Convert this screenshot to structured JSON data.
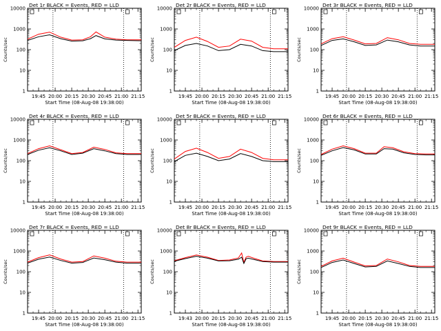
{
  "chart_data": [
    {
      "type": "line",
      "title": "Det 1r BLACK = Events, RED = LLD",
      "xlabel": "Start Time (08-Aug-08 19:38:00)",
      "ylabel": "Counts/sec",
      "y_scale": "log",
      "ylim": [
        1,
        10000
      ],
      "xlim": [
        "19:35",
        "21:18"
      ],
      "x_tick_labels": [
        "19:45",
        "20:00",
        "20:15",
        "20:30",
        "20:45",
        "21:00",
        "21:15"
      ],
      "y_tick_labels": [
        "1",
        "10",
        "100",
        "1000",
        "10000"
      ],
      "vlines": [
        "19:58",
        "21:02"
      ],
      "marker_label": "E",
      "x": [
        "19:35",
        "19:45",
        "19:55",
        "20:05",
        "20:15",
        "20:25",
        "20:32",
        "20:37",
        "20:45",
        "20:55",
        "21:05",
        "21:18"
      ],
      "series": [
        {
          "name": "BLACK = Events",
          "color": "#000000",
          "values": [
            280,
            420,
            520,
            340,
            260,
            270,
            340,
            480,
            330,
            290,
            280,
            270
          ]
        },
        {
          "name": "RED = LLD",
          "color": "#ff0000",
          "values": [
            320,
            560,
            700,
            400,
            290,
            300,
            420,
            720,
            400,
            320,
            300,
            300
          ]
        }
      ]
    },
    {
      "type": "line",
      "title": "Det 2r BLACK = Events, RED = LLD",
      "xlabel": "Start Time (08-Aug-08 19:38:00)",
      "ylabel": "Counts/sec",
      "y_scale": "log",
      "ylim": [
        1,
        10000
      ],
      "xlim": [
        "19:35",
        "21:18"
      ],
      "x_tick_labels": [
        "19:45",
        "20:00",
        "20:15",
        "20:30",
        "20:45",
        "21:00",
        "21:15"
      ],
      "y_tick_labels": [
        "1",
        "10",
        "100",
        "1000",
        "10000"
      ],
      "vlines": [
        "19:58",
        "21:02"
      ],
      "marker_label": "E",
      "x": [
        "19:35",
        "19:45",
        "19:55",
        "20:05",
        "20:15",
        "20:25",
        "20:35",
        "20:45",
        "20:55",
        "21:05",
        "21:18"
      ],
      "series": [
        {
          "name": "BLACK = Events",
          "color": "#000000",
          "values": [
            90,
            160,
            200,
            150,
            90,
            100,
            180,
            150,
            90,
            80,
            80
          ]
        },
        {
          "name": "RED = LLD",
          "color": "#ff0000",
          "values": [
            130,
            280,
            400,
            250,
            130,
            150,
            320,
            260,
            130,
            110,
            110
          ]
        }
      ]
    },
    {
      "type": "line",
      "title": "Det 3r BLACK = Events, RED = LLD",
      "xlabel": "Start Time (08-Aug-08 19:38:00)",
      "ylabel": "Counts/sec",
      "y_scale": "log",
      "ylim": [
        1,
        10000
      ],
      "xlim": [
        "19:35",
        "21:18"
      ],
      "x_tick_labels": [
        "19:45",
        "20:00",
        "20:15",
        "20:30",
        "20:45",
        "21:00",
        "21:15"
      ],
      "y_tick_labels": [
        "1",
        "10",
        "100",
        "1000",
        "10000"
      ],
      "vlines": [
        "19:58",
        "21:02"
      ],
      "marker_label": "E",
      "x": [
        "19:35",
        "19:45",
        "19:55",
        "20:05",
        "20:15",
        "20:25",
        "20:35",
        "20:45",
        "20:55",
        "21:05",
        "21:18"
      ],
      "series": [
        {
          "name": "BLACK = Events",
          "color": "#000000",
          "values": [
            160,
            280,
            330,
            240,
            160,
            170,
            290,
            240,
            170,
            150,
            150
          ]
        },
        {
          "name": "RED = LLD",
          "color": "#ff0000",
          "values": [
            190,
            340,
            420,
            290,
            190,
            200,
            380,
            300,
            200,
            180,
            180
          ]
        }
      ]
    },
    {
      "type": "line",
      "title": "Det 4r BLACK = Events, RED = LLD",
      "xlabel": "Start Time (08-Aug-08 19:38:00)",
      "ylabel": "Counts/sec",
      "y_scale": "log",
      "ylim": [
        1,
        10000
      ],
      "xlim": [
        "19:35",
        "21:18"
      ],
      "x_tick_labels": [
        "19:45",
        "20:00",
        "20:15",
        "20:30",
        "20:45",
        "21:00",
        "21:15"
      ],
      "y_tick_labels": [
        "1",
        "10",
        "100",
        "1000",
        "10000"
      ],
      "vlines": [
        "19:58",
        "21:02"
      ],
      "marker_label": "E",
      "x": [
        "19:35",
        "19:45",
        "19:55",
        "20:05",
        "20:15",
        "20:25",
        "20:35",
        "20:45",
        "20:55",
        "21:05",
        "21:18"
      ],
      "series": [
        {
          "name": "BLACK = Events",
          "color": "#000000",
          "values": [
            200,
            320,
            420,
            300,
            200,
            230,
            380,
            300,
            220,
            200,
            200
          ]
        },
        {
          "name": "RED = LLD",
          "color": "#ff0000",
          "values": [
            220,
            380,
            520,
            340,
            220,
            250,
            450,
            350,
            240,
            220,
            220
          ]
        }
      ]
    },
    {
      "type": "line",
      "title": "Det 5r BLACK = Events, RED = LLD",
      "xlabel": "Start Time (08-Aug-08 19:38:00)",
      "ylabel": "Counts/sec",
      "y_scale": "log",
      "ylim": [
        1,
        10000
      ],
      "xlim": [
        "19:35",
        "21:18"
      ],
      "x_tick_labels": [
        "19:45",
        "20:00",
        "20:15",
        "20:30",
        "20:45",
        "21:00",
        "21:15"
      ],
      "y_tick_labels": [
        "1",
        "10",
        "100",
        "1000",
        "10000"
      ],
      "vlines": [
        "19:58",
        "21:02"
      ],
      "marker_label": "E",
      "x": [
        "19:35",
        "19:45",
        "19:55",
        "20:05",
        "20:15",
        "20:25",
        "20:35",
        "20:45",
        "20:55",
        "21:05",
        "21:18"
      ],
      "series": [
        {
          "name": "BLACK = Events",
          "color": "#000000",
          "values": [
            90,
            180,
            230,
            160,
            100,
            120,
            220,
            160,
            100,
            90,
            90
          ]
        },
        {
          "name": "RED = LLD",
          "color": "#ff0000",
          "values": [
            120,
            280,
            400,
            250,
            130,
            160,
            360,
            250,
            130,
            110,
            110
          ]
        }
      ]
    },
    {
      "type": "line",
      "title": "Det 6r BLACK = Events, RED = LLD",
      "xlabel": "Start Time (08-Aug-08 19:38:00)",
      "ylabel": "Counts/sec",
      "y_scale": "log",
      "ylim": [
        1,
        10000
      ],
      "xlim": [
        "19:35",
        "21:18"
      ],
      "x_tick_labels": [
        "19:45",
        "20:00",
        "20:15",
        "20:30",
        "20:45",
        "21:00",
        "21:15"
      ],
      "y_tick_labels": [
        "1",
        "10",
        "100",
        "1000",
        "10000"
      ],
      "vlines": [
        "19:58",
        "21:02"
      ],
      "marker_label": "E",
      "x": [
        "19:35",
        "19:45",
        "19:55",
        "20:05",
        "20:15",
        "20:25",
        "20:32",
        "20:40",
        "20:50",
        "21:00",
        "21:10",
        "21:18"
      ],
      "series": [
        {
          "name": "BLACK = Events",
          "color": "#000000",
          "values": [
            180,
            300,
            430,
            330,
            210,
            210,
            380,
            360,
            240,
            200,
            190,
            190
          ]
        },
        {
          "name": "RED = LLD",
          "color": "#ff0000",
          "values": [
            200,
            360,
            520,
            380,
            230,
            230,
            470,
            420,
            270,
            220,
            210,
            210
          ]
        }
      ]
    },
    {
      "type": "line",
      "title": "Det 7r BLACK = Events, RED = LLD",
      "xlabel": "Start Time (08-Aug-08 19:38:00)",
      "ylabel": "Counts/sec",
      "y_scale": "log",
      "ylim": [
        1,
        10000
      ],
      "xlim": [
        "19:35",
        "21:18"
      ],
      "x_tick_labels": [
        "19:45",
        "20:00",
        "20:15",
        "20:30",
        "20:45",
        "21:00",
        "21:15"
      ],
      "y_tick_labels": [
        "1",
        "10",
        "100",
        "1000",
        "10000"
      ],
      "vlines": [
        "19:58",
        "21:02"
      ],
      "marker_label": "E",
      "x": [
        "19:35",
        "19:45",
        "19:55",
        "20:05",
        "20:15",
        "20:25",
        "20:35",
        "20:45",
        "20:55",
        "21:05",
        "21:18"
      ],
      "series": [
        {
          "name": "BLACK = Events",
          "color": "#000000",
          "values": [
            260,
            400,
            510,
            350,
            260,
            280,
            460,
            380,
            290,
            260,
            260
          ]
        },
        {
          "name": "RED = LLD",
          "color": "#ff0000",
          "values": [
            290,
            480,
            650,
            410,
            290,
            310,
            580,
            450,
            320,
            290,
            290
          ]
        }
      ]
    },
    {
      "type": "line",
      "title": "Det 8r BLACK = Events, RED = LLD",
      "xlabel": "Start Time (08-Aug-08 19:38:00)",
      "ylabel": "Counts/sec",
      "y_scale": "log",
      "ylim": [
        1,
        10000
      ],
      "xlim": [
        "19:35",
        "21:18"
      ],
      "x_tick_labels": [
        "19:43",
        "20:00",
        "20:15",
        "20:30",
        "20:45",
        "21:00",
        "21:15"
      ],
      "y_tick_labels": [
        "1",
        "10",
        "100",
        "1000",
        "10000"
      ],
      "vlines": [
        "19:58",
        "21:02"
      ],
      "marker_label": "E",
      "x": [
        "19:35",
        "19:45",
        "19:55",
        "20:05",
        "20:15",
        "20:25",
        "20:33",
        "20:36",
        "20:38",
        "20:40",
        "20:42",
        "20:48",
        "20:55",
        "21:05",
        "21:18"
      ],
      "series": [
        {
          "name": "BLACK = Events",
          "color": "#000000",
          "values": [
            320,
            430,
            560,
            450,
            330,
            340,
            400,
            500,
            250,
            420,
            450,
            380,
            310,
            290,
            290
          ]
        },
        {
          "name": "RED = LLD",
          "color": "#ff0000",
          "values": [
            340,
            480,
            640,
            500,
            350,
            370,
            460,
            800,
            280,
            500,
            560,
            430,
            330,
            310,
            310
          ]
        }
      ]
    },
    {
      "type": "line",
      "title": "Det 9r BLACK = Events, RED = LLD",
      "xlabel": "Start Time (08-Aug-08 19:38:00)",
      "ylabel": "Counts/sec",
      "y_scale": "log",
      "ylim": [
        1,
        10000
      ],
      "xlim": [
        "19:35",
        "21:18"
      ],
      "x_tick_labels": [
        "19:45",
        "20:00",
        "20:15",
        "20:30",
        "20:45",
        "21:00",
        "21:15"
      ],
      "y_tick_labels": [
        "1",
        "10",
        "100",
        "1000",
        "10000"
      ],
      "vlines": [
        "19:58",
        "21:02"
      ],
      "marker_label": "E",
      "x": [
        "19:35",
        "19:45",
        "19:55",
        "20:05",
        "20:15",
        "20:25",
        "20:35",
        "20:45",
        "20:55",
        "21:05",
        "21:18"
      ],
      "series": [
        {
          "name": "BLACK = Events",
          "color": "#000000",
          "values": [
            160,
            280,
            370,
            250,
            170,
            180,
            330,
            250,
            180,
            160,
            160
          ]
        },
        {
          "name": "RED = LLD",
          "color": "#ff0000",
          "values": [
            180,
            330,
            450,
            290,
            190,
            200,
            410,
            300,
            200,
            180,
            180
          ]
        }
      ]
    }
  ]
}
